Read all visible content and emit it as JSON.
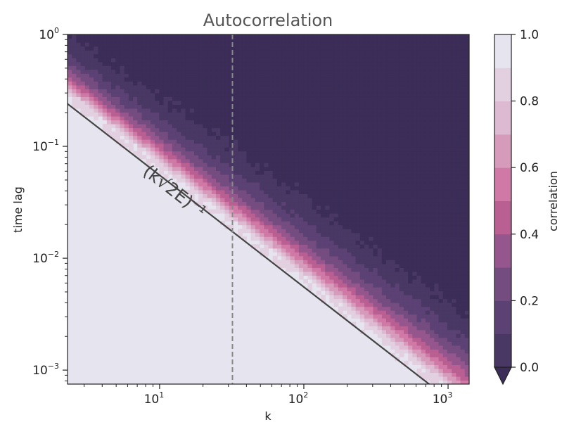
{
  "chart_data": {
    "type": "heatmap",
    "title": "Autocorrelation",
    "xlabel": "k",
    "ylabel": "time lag",
    "x_scale": "log",
    "y_scale": "log",
    "xlim": [
      2.3,
      1400
    ],
    "ylim": [
      0.00075,
      1.0
    ],
    "x_ticks": [
      {
        "value": 10,
        "base": "10",
        "exp": "1"
      },
      {
        "value": 100,
        "base": "10",
        "exp": "2"
      },
      {
        "value": 1000,
        "base": "10",
        "exp": "3"
      }
    ],
    "y_ticks": [
      {
        "value": 0.001,
        "base": "10",
        "exp": "−3"
      },
      {
        "value": 0.01,
        "base": "10",
        "exp": "−2"
      },
      {
        "value": 0.1,
        "base": "10",
        "exp": "−1"
      },
      {
        "value": 1,
        "base": "10",
        "exp": "0"
      }
    ],
    "colorbar": {
      "label": "correlation",
      "range": [
        0.0,
        1.0
      ],
      "levels": [
        0.0,
        0.1,
        0.2,
        0.3,
        0.4,
        0.5,
        0.6,
        0.7,
        0.8,
        0.9,
        1.0
      ],
      "tick_values": [
        0.0,
        0.2,
        0.4,
        0.6,
        0.8,
        1.0
      ],
      "tick_labels": [
        "0.0",
        "0.2",
        "0.4",
        "0.6",
        "0.8",
        "1.0"
      ],
      "extend": "min",
      "colors": [
        "#3b2d57",
        "#493764",
        "#5b4174",
        "#744c80",
        "#94568c",
        "#b95f92",
        "#d079a6",
        "#d69aba",
        "#ddbad2",
        "#e2d0e0",
        "#e6e5ef"
      ]
    },
    "reference_line": {
      "label": "(k√2E)⁻¹",
      "points": [
        [
          2.3,
          0.24
        ],
        [
          780,
          0.00071
        ]
      ],
      "color": "#444444"
    },
    "vertical_marker": {
      "x": 32,
      "style": "dashed",
      "color": "#888888"
    },
    "grid": false
  }
}
